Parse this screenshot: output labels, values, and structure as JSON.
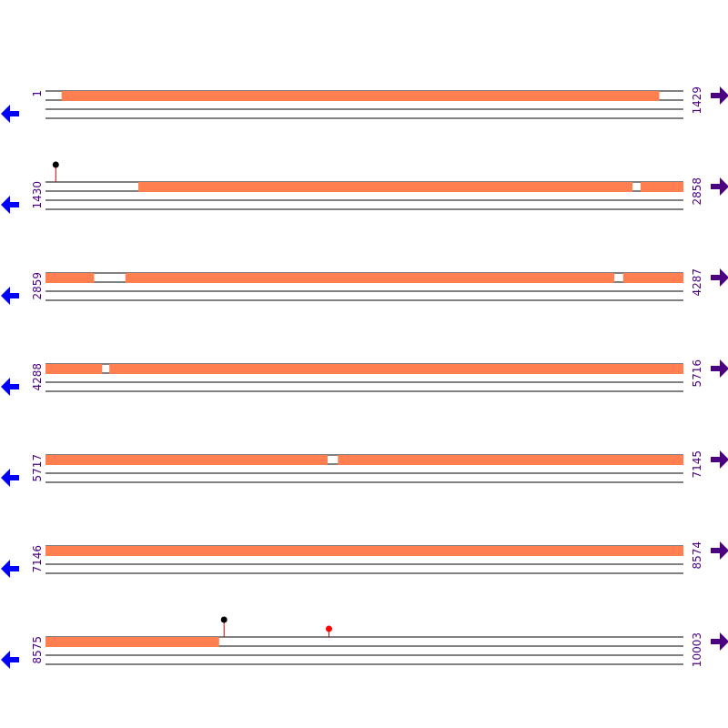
{
  "sequence_map": {
    "sequence_length": 10003,
    "colors": {
      "feature": "#ff7f50",
      "strand_line": "#000000",
      "label": "#4b0082",
      "forward_arrow": "#4b0082",
      "reverse_arrow": "#0000ff",
      "marker_black": "#000000",
      "marker_red": "#ff0000",
      "marker_stem": "#cc0000"
    },
    "icons": {
      "forward": "arrow-right-icon",
      "reverse": "arrow-left-icon"
    },
    "rows": [
      {
        "start_label": "1",
        "end_label": "1429",
        "start": 1,
        "end": 1429,
        "features": [
          [
            37,
            1375
          ]
        ],
        "markers": []
      },
      {
        "start_label": "1430",
        "end_label": "2858",
        "start": 1430,
        "end": 2858,
        "features": [
          [
            1638,
            2744
          ],
          [
            2763,
            2858
          ]
        ],
        "markers": [
          {
            "pos": 1453,
            "color": "black",
            "tall": true
          }
        ]
      },
      {
        "start_label": "2859",
        "end_label": "4287",
        "start": 2859,
        "end": 4287,
        "features": [
          [
            2859,
            2967
          ],
          [
            3038,
            4132
          ],
          [
            4153,
            4287
          ]
        ],
        "markers": []
      },
      {
        "start_label": "4288",
        "end_label": "5716",
        "start": 4288,
        "end": 5716,
        "features": [
          [
            4288,
            4414
          ],
          [
            4431,
            5716
          ]
        ],
        "markers": []
      },
      {
        "start_label": "5717",
        "end_label": "7145",
        "start": 5717,
        "end": 7145,
        "features": [
          [
            5717,
            6348
          ],
          [
            6372,
            7145
          ]
        ],
        "markers": []
      },
      {
        "start_label": "7146",
        "end_label": "8574",
        "start": 7146,
        "end": 8574,
        "features": [
          [
            7146,
            8574
          ]
        ],
        "markers": []
      },
      {
        "start_label": "8575",
        "end_label": "10003",
        "start": 8575,
        "end": 10003,
        "features": [
          [
            8575,
            8963
          ]
        ],
        "markers": [
          {
            "pos": 8975,
            "color": "black",
            "tall": true
          },
          {
            "pos": 9210,
            "color": "red",
            "tall": false
          }
        ]
      }
    ]
  }
}
